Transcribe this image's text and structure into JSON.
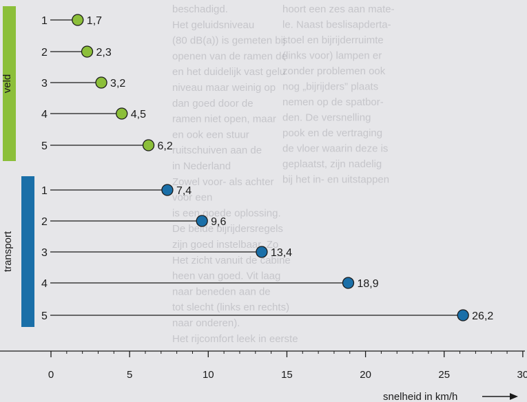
{
  "chart_data": {
    "type": "lollipop",
    "groups": [
      {
        "label": "veld",
        "color": "#8cbf3a",
        "items": [
          {
            "label": "1",
            "value": 1.7,
            "value_label": "1,7"
          },
          {
            "label": "2",
            "value": 2.3,
            "value_label": "2,3"
          },
          {
            "label": "3",
            "value": 3.2,
            "value_label": "3,2"
          },
          {
            "label": "4",
            "value": 4.5,
            "value_label": "4,5"
          },
          {
            "label": "5",
            "value": 6.2,
            "value_label": "6,2"
          }
        ]
      },
      {
        "label": "transport",
        "color": "#1a6fa8",
        "items": [
          {
            "label": "1",
            "value": 7.4,
            "value_label": "7,4"
          },
          {
            "label": "2",
            "value": 9.6,
            "value_label": "9,6"
          },
          {
            "label": "3",
            "value": 13.4,
            "value_label": "13,4"
          },
          {
            "label": "4",
            "value": 18.9,
            "value_label": "18,9"
          },
          {
            "label": "5",
            "value": 26.2,
            "value_label": "26,2"
          }
        ]
      }
    ],
    "x_ticks": [
      0,
      5,
      10,
      15,
      20,
      25,
      30
    ],
    "xlim": [
      0,
      30
    ],
    "xlabel": "snelheid in km/h",
    "grid": false
  },
  "background_text": [
    "hoort een zes aan mate-",
    "le. Naast beslisapderta-",
    "stoel en bijrijderruimte",
    "(links voor) lampen er",
    "zonder problemen ook",
    "nog „bijrijders” plaats",
    "nemen op de spatbor-",
    "den. De versnelling",
    "pook en de vertraging",
    "de vloer waarin deze is",
    "geplaatst, zijn nadelig",
    "bij het in- en uitstappen",
    "beschadigd.",
    "Het geluidsniveau",
    "(80 dB(a)) is gemeten bij",
    "openen van de ramen de",
    "en het duidelijk vast gelu",
    "niveau maar weinig op",
    "dan goed door de",
    "ramen niet open, maar",
    "en ook een stuur",
    "ruitschuiven aan de",
    "in Nederland",
    "Zowel voor- als achter",
    "voor een",
    "is een goede oplossing.",
    "De beide bijrijdersregels",
    "zijn goed instelbaar. Zo",
    "Het zicht vanuit de cabine",
    "heen van goed. Vit laag",
    "naar beneden aan de",
    "tot slecht (links en rechts)",
    "naar onderen).",
    "Het rijcomfort leek in eerste"
  ]
}
